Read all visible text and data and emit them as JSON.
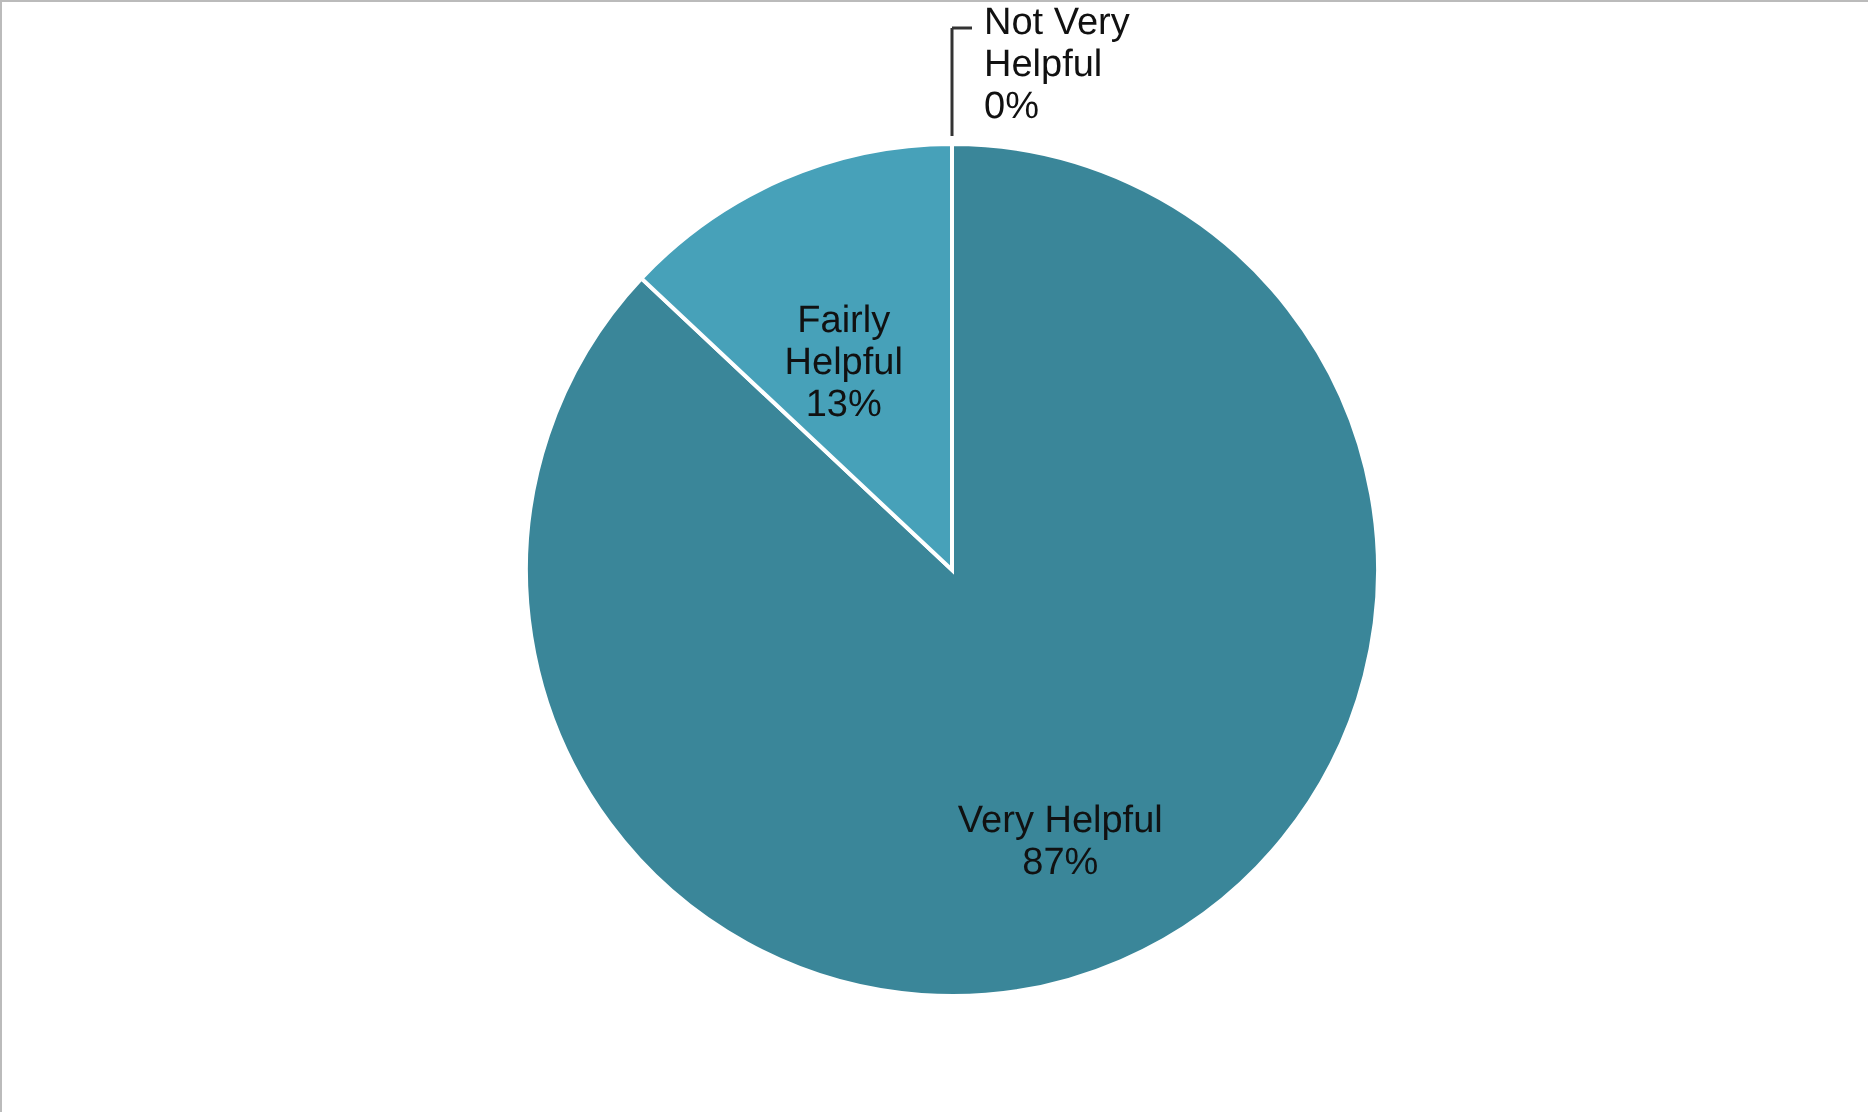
{
  "chart_data": {
    "type": "pie",
    "categories": [
      "Very  Helpful",
      "Fairly\nHelpful",
      "Not Very\nHelpful"
    ],
    "values": [
      87,
      13,
      0
    ],
    "value_labels": [
      "87%",
      "13%",
      "0%"
    ],
    "colors": [
      "#3a8699",
      "#47a1b9",
      "#9fd0e0"
    ]
  }
}
